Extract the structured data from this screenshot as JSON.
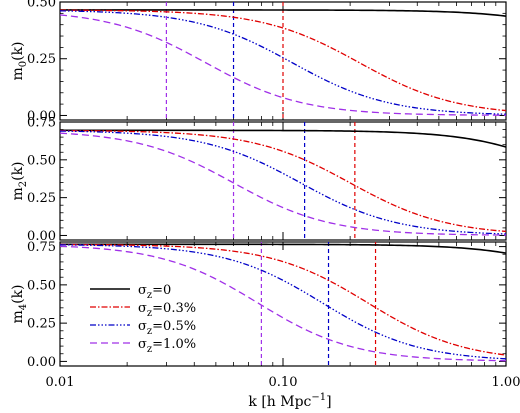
{
  "chart_data": {
    "type": "line",
    "xlabel": "k [h Mpc⁻¹]",
    "xscale": "log",
    "xlim": [
      0.01,
      1.0
    ],
    "xticks": [
      {
        "value": 0.01,
        "label": "0.01"
      },
      {
        "value": 0.1,
        "label": "0.10"
      },
      {
        "value": 1.0,
        "label": "1.00"
      }
    ],
    "legend": {
      "placement": "lower-left",
      "panel": 2,
      "entries": [
        {
          "label": "σz=0",
          "color": "#000000",
          "dash": "solid"
        },
        {
          "label": "σz=0.3%",
          "color": "#e00000",
          "dash": "dashdot"
        },
        {
          "label": "σz=0.5%",
          "color": "#0000c8",
          "dash": "dashdotdot"
        },
        {
          "label": "σz=1.0%",
          "color": "#a030e8",
          "dash": "dashed"
        }
      ]
    },
    "panels": [
      {
        "ylabel": "m0(k)",
        "ylim": [
          -0.02,
          0.5
        ],
        "yticks": [
          {
            "value": 0.0,
            "label": "0.00"
          },
          {
            "value": 0.25,
            "label": "0.25"
          },
          {
            "value": 0.5,
            "label": "0.50"
          }
        ],
        "plateau": 0.465,
        "series": [
          {
            "kstar": 4.0,
            "n": 2.0
          },
          {
            "kstar": 0.22,
            "n": 2.0
          },
          {
            "kstar": 0.11,
            "n": 2.0
          },
          {
            "kstar": 0.045,
            "n": 2.0
          }
        ],
        "vlines": [
          {
            "series": 1,
            "x": 0.1
          },
          {
            "series": 2,
            "x": 0.06
          },
          {
            "series": 3,
            "x": 0.03
          }
        ]
      },
      {
        "ylabel": "m2(k)",
        "ylim": [
          -0.03,
          0.75
        ],
        "yticks": [
          {
            "value": 0.0,
            "label": "0.00"
          },
          {
            "value": 0.25,
            "label": "0.25"
          },
          {
            "value": 0.5,
            "label": "0.50"
          },
          {
            "value": 0.75,
            "label": "0.75"
          }
        ],
        "plateau": 0.695,
        "series": [
          {
            "kstar": 2.3,
            "n": 2.0
          },
          {
            "kstar": 0.2,
            "n": 2.0
          },
          {
            "kstar": 0.12,
            "n": 2.0
          },
          {
            "kstar": 0.06,
            "n": 2.0
          }
        ],
        "vlines": [
          {
            "series": 1,
            "x": 0.21
          },
          {
            "series": 2,
            "x": 0.125
          },
          {
            "series": 3,
            "x": 0.06
          }
        ]
      },
      {
        "ylabel": "m4(k)",
        "ylim": [
          -0.03,
          0.78
        ],
        "yticks": [
          {
            "value": 0.0,
            "label": "0.00"
          },
          {
            "value": 0.25,
            "label": "0.25"
          },
          {
            "value": 0.5,
            "label": "0.50"
          },
          {
            "value": 0.75,
            "label": "0.75"
          }
        ],
        "plateau": 0.765,
        "series": [
          {
            "kstar": 3.5,
            "n": 2.0
          },
          {
            "kstar": 0.24,
            "n": 2.0
          },
          {
            "kstar": 0.15,
            "n": 2.0
          },
          {
            "kstar": 0.077,
            "n": 2.0
          }
        ],
        "vlines": [
          {
            "series": 1,
            "x": 0.26
          },
          {
            "series": 2,
            "x": 0.16
          },
          {
            "series": 3,
            "x": 0.08
          }
        ]
      }
    ]
  }
}
